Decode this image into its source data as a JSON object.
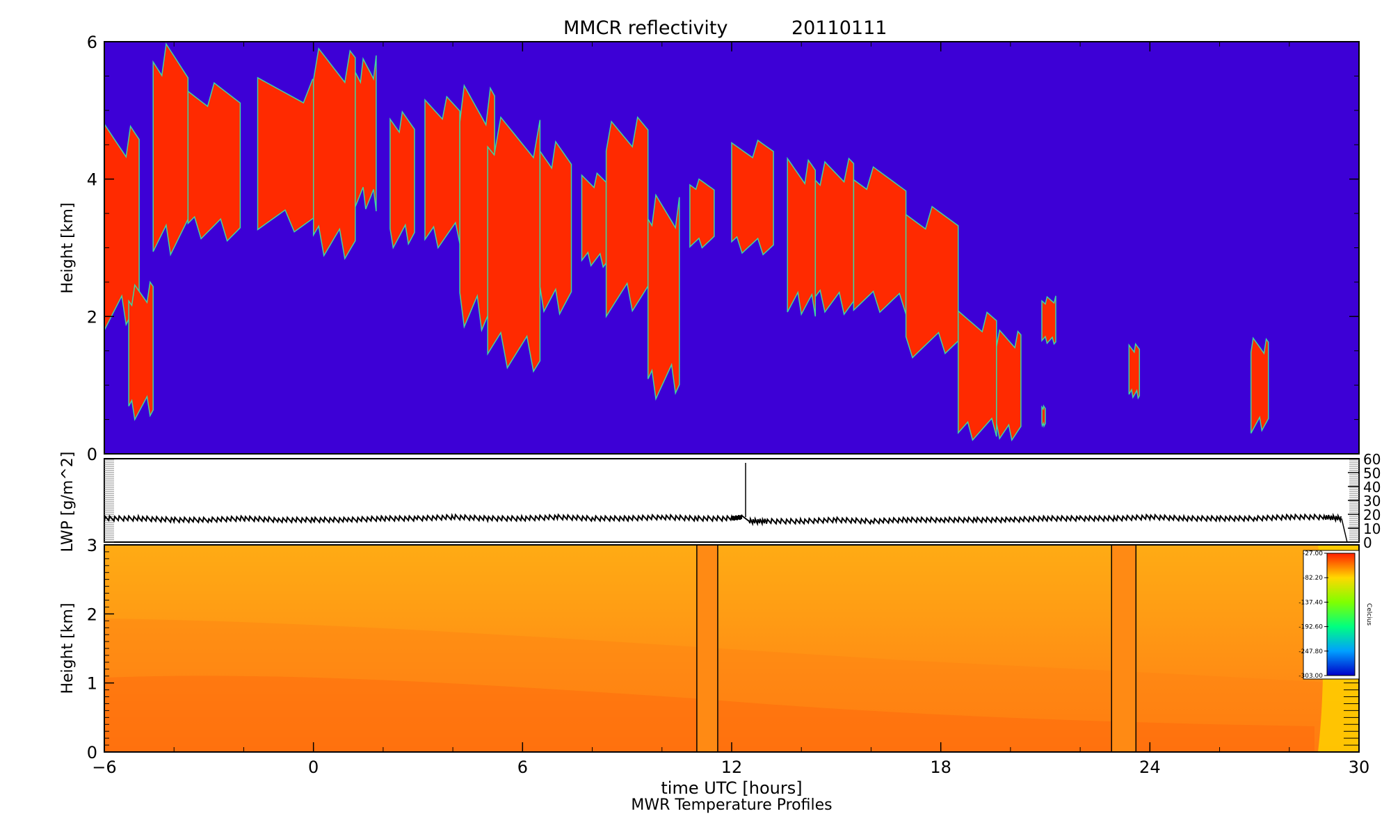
{
  "chart_data": [
    {
      "type": "heatmap",
      "panel": "reflectivity",
      "title": "MMCR reflectivity",
      "date": "20110111",
      "xlabel": "",
      "ylabel": "Height [km]",
      "xlim": [
        -6,
        30
      ],
      "ylim": [
        0,
        6
      ],
      "y_ticks": [
        "0",
        "2",
        "4",
        "6"
      ],
      "colors": {
        "background": "#3d00d6",
        "cloud": "#ff2a00",
        "edge": "#3fd6a0"
      },
      "cloud_regions": [
        {
          "x": [
            -6.0,
            -5.0
          ],
          "y": [
            1.8,
            4.8
          ]
        },
        {
          "x": [
            -5.3,
            -4.6
          ],
          "y": [
            0.5,
            2.5
          ]
        },
        {
          "x": [
            -4.6,
            -3.6
          ],
          "y": [
            2.9,
            6.0
          ]
        },
        {
          "x": [
            -3.6,
            -2.1
          ],
          "y": [
            3.1,
            5.4
          ]
        },
        {
          "x": [
            -1.6,
            0.5
          ],
          "y": [
            3.2,
            5.5
          ]
        },
        {
          "x": [
            0.0,
            1.2
          ],
          "y": [
            2.8,
            5.9
          ]
        },
        {
          "x": [
            1.2,
            1.8
          ],
          "y": [
            3.5,
            5.8
          ]
        },
        {
          "x": [
            2.2,
            2.9
          ],
          "y": [
            3.0,
            5.0
          ]
        },
        {
          "x": [
            3.2,
            4.2
          ],
          "y": [
            3.0,
            5.2
          ]
        },
        {
          "x": [
            4.2,
            5.2
          ],
          "y": [
            1.8,
            5.4
          ]
        },
        {
          "x": [
            5.0,
            6.5
          ],
          "y": [
            1.2,
            4.9
          ]
        },
        {
          "x": [
            6.5,
            7.4
          ],
          "y": [
            2.0,
            4.6
          ]
        },
        {
          "x": [
            7.7,
            8.4
          ],
          "y": [
            2.7,
            4.1
          ]
        },
        {
          "x": [
            8.4,
            9.6
          ],
          "y": [
            2.0,
            4.9
          ]
        },
        {
          "x": [
            9.6,
            10.5
          ],
          "y": [
            0.8,
            3.8
          ]
        },
        {
          "x": [
            10.8,
            11.5
          ],
          "y": [
            3.0,
            4.0
          ]
        },
        {
          "x": [
            12.0,
            13.2
          ],
          "y": [
            2.9,
            4.6
          ]
        },
        {
          "x": [
            13.6,
            14.4
          ],
          "y": [
            2.0,
            4.3
          ]
        },
        {
          "x": [
            14.4,
            15.5
          ],
          "y": [
            2.0,
            4.3
          ]
        },
        {
          "x": [
            15.5,
            17.0
          ],
          "y": [
            2.0,
            4.2
          ]
        },
        {
          "x": [
            17.0,
            18.5
          ],
          "y": [
            1.4,
            3.6
          ]
        },
        {
          "x": [
            18.5,
            19.6
          ],
          "y": [
            0.2,
            2.1
          ]
        },
        {
          "x": [
            19.6,
            20.3
          ],
          "y": [
            0.2,
            1.8
          ]
        },
        {
          "x": [
            20.9,
            21.3
          ],
          "y": [
            1.6,
            2.3
          ]
        },
        {
          "x": [
            20.9,
            21.0
          ],
          "y": [
            0.4,
            0.7
          ]
        },
        {
          "x": [
            23.4,
            23.7
          ],
          "y": [
            0.8,
            1.6
          ]
        },
        {
          "x": [
            26.9,
            27.4
          ],
          "y": [
            0.3,
            1.7
          ]
        }
      ]
    },
    {
      "type": "line",
      "panel": "lwp",
      "ylabel": "LWP [g/m^2]",
      "xlim": [
        -6,
        30
      ],
      "ylim": [
        0,
        60
      ],
      "y_ticks": [
        "0",
        "10",
        "20",
        "30",
        "40",
        "50",
        "60"
      ],
      "series": [
        {
          "x": [
            -6,
            -5,
            -4,
            -3,
            -2,
            -1,
            0,
            1,
            2,
            3,
            4,
            5,
            6,
            7,
            8,
            9,
            10,
            11,
            12,
            12.3,
            12.4,
            12.5,
            13,
            14,
            15,
            16,
            17,
            18,
            19,
            20,
            21,
            22,
            23,
            24,
            25,
            26,
            27,
            28,
            29,
            29.5
          ],
          "values": [
            17,
            17,
            16,
            16,
            17,
            16,
            16,
            16,
            17,
            17,
            18,
            17,
            17,
            18,
            17,
            17,
            18,
            17,
            17,
            18,
            57,
            15,
            15,
            15,
            16,
            15,
            16,
            16,
            16,
            16,
            17,
            17,
            17,
            18,
            17,
            17,
            17,
            18,
            18,
            17
          ]
        }
      ]
    },
    {
      "type": "heatmap",
      "panel": "temperature",
      "title": "",
      "subtitle": "MWR Temperature Profiles",
      "xlabel": "time UTC [hours]",
      "ylabel": "Height [km]",
      "xlim": [
        -6,
        30
      ],
      "ylim": [
        0,
        3
      ],
      "x_ticks": [
        "−6",
        "0",
        "6",
        "12",
        "18",
        "24",
        "30"
      ],
      "y_ticks": [
        "0",
        "1",
        "2",
        "3"
      ],
      "missing_data_bars": [
        [
          11.0,
          11.6
        ],
        [
          22.9,
          23.6
        ]
      ],
      "colorbar": {
        "unit": "Celcius",
        "ticks": [
          "-27.00",
          "-82.20",
          "-137.40",
          "-192.60",
          "-247.80",
          "-303.00"
        ]
      }
    }
  ]
}
